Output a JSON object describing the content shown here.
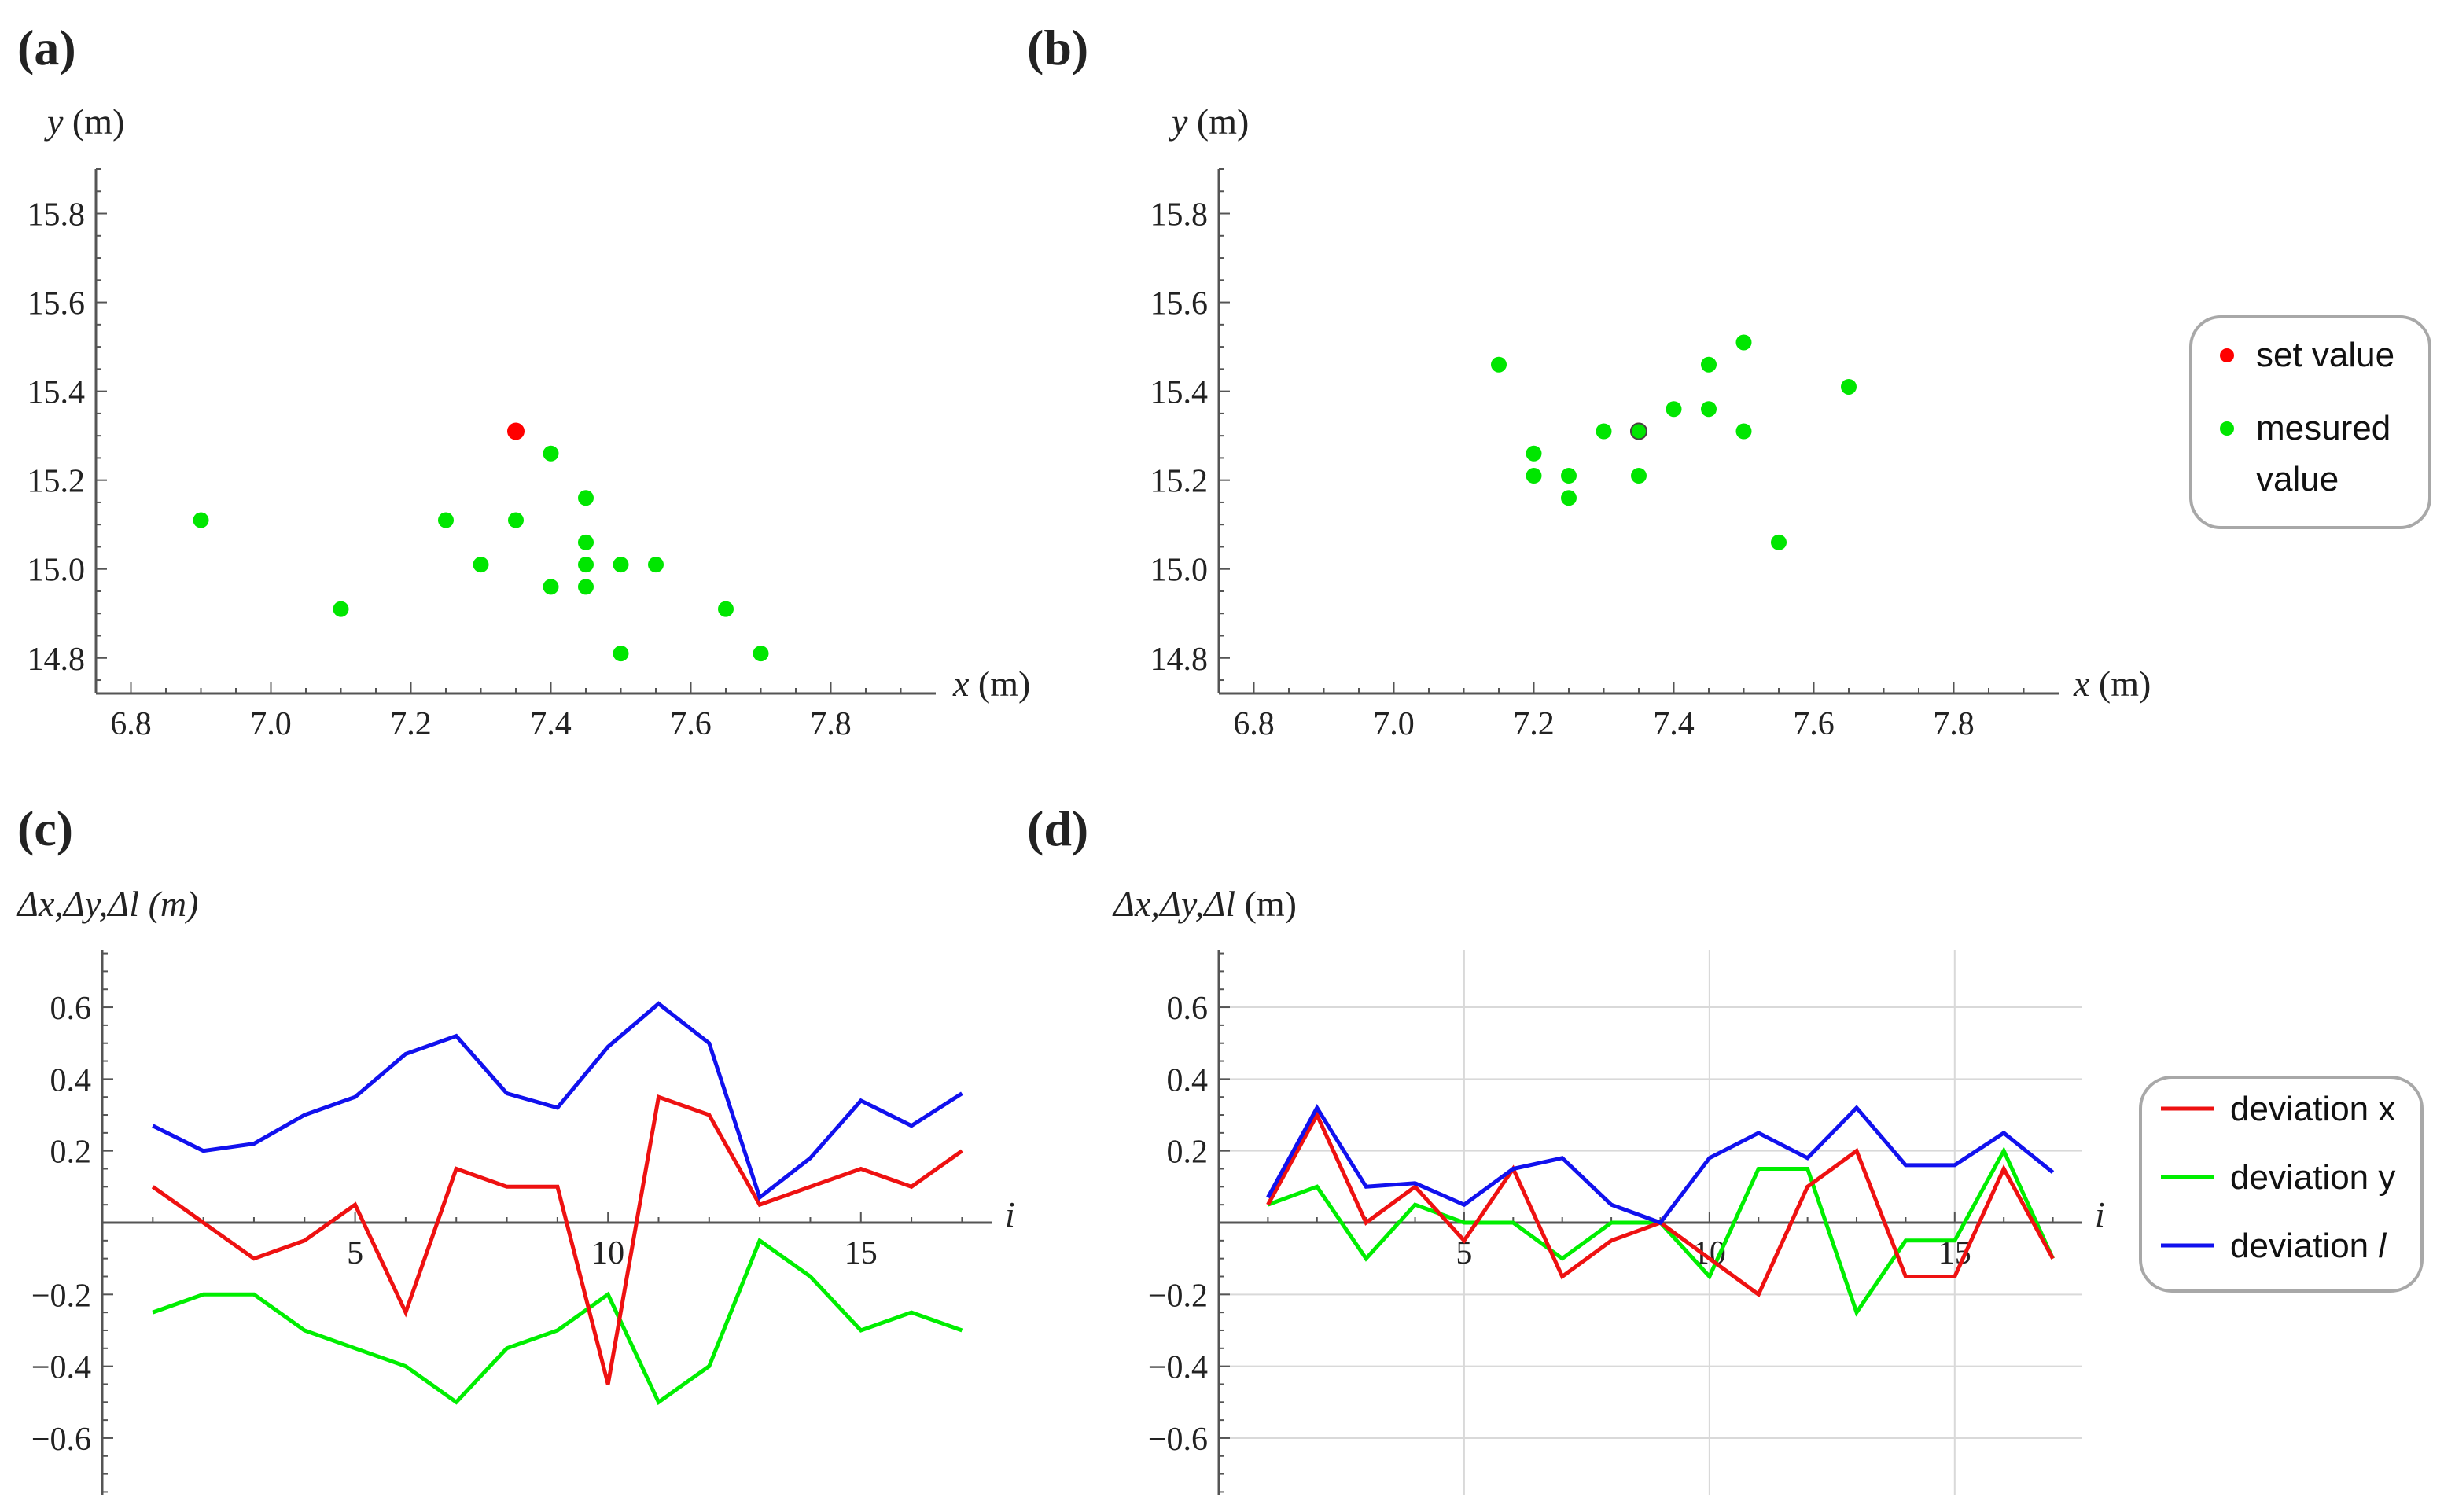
{
  "figure": {
    "panels": {
      "a": "(a)",
      "b": "(b)",
      "c": "(c)",
      "d": "(d)"
    }
  },
  "colors": {
    "set": "#ff0000",
    "measured": "#00e600",
    "dev_x": "#ee1111",
    "dev_y": "#00ee00",
    "dev_l": "#1111ee",
    "axis": "#555555",
    "grid": "#d9d9d9"
  },
  "legend_top": {
    "items": [
      {
        "label": "set value",
        "color": "#ff0000"
      },
      {
        "label": "mesured",
        "label2": "value",
        "color": "#00e600"
      }
    ]
  },
  "legend_bottom": {
    "items": [
      {
        "label": "deviation x",
        "color": "#ee1111"
      },
      {
        "label": "deviation y",
        "color": "#00ee00"
      },
      {
        "label": "deviation ",
        "italic": "l",
        "color": "#1111ee"
      }
    ]
  },
  "chart_data": [
    {
      "id": "a",
      "type": "scatter",
      "title": "",
      "xlabel_var": "x",
      "xlabel_unit": " (m)",
      "ylabel_var": "y",
      "ylabel_unit": " (m)",
      "xlim": [
        6.75,
        7.95
      ],
      "ylim": [
        14.72,
        15.9
      ],
      "xticks": [
        6.8,
        7.0,
        7.2,
        7.4,
        7.6,
        7.8
      ],
      "xtick_labels": [
        "6.8",
        "7.0",
        "7.2",
        "7.4",
        "7.6",
        "7.8"
      ],
      "yticks": [
        14.8,
        15.0,
        15.2,
        15.4,
        15.6,
        15.8
      ],
      "ytick_labels": [
        "14.8",
        "15.0",
        "15.2",
        "15.4",
        "15.6",
        "15.8"
      ],
      "set_value": {
        "x": 7.35,
        "y": 15.31
      },
      "measured": {
        "x": [
          6.9,
          7.1,
          7.25,
          7.3,
          7.35,
          7.4,
          7.4,
          7.45,
          7.45,
          7.45,
          7.45,
          7.5,
          7.5,
          7.55,
          7.65,
          7.7
        ],
        "y": [
          15.11,
          14.91,
          15.11,
          15.01,
          15.11,
          15.26,
          14.96,
          15.16,
          15.06,
          15.01,
          14.96,
          15.01,
          14.81,
          15.01,
          14.91,
          14.81
        ]
      }
    },
    {
      "id": "b",
      "type": "scatter",
      "title": "",
      "xlabel_var": "x",
      "xlabel_unit": " (m)",
      "ylabel_var": "y",
      "ylabel_unit": " (m)",
      "xlim": [
        6.75,
        7.95
      ],
      "ylim": [
        14.72,
        15.9
      ],
      "xticks": [
        6.8,
        7.0,
        7.2,
        7.4,
        7.6,
        7.8
      ],
      "xtick_labels": [
        "6.8",
        "7.0",
        "7.2",
        "7.4",
        "7.6",
        "7.8"
      ],
      "yticks": [
        14.8,
        15.0,
        15.2,
        15.4,
        15.6,
        15.8
      ],
      "ytick_labels": [
        "14.8",
        "15.0",
        "15.2",
        "15.4",
        "15.6",
        "15.8"
      ],
      "set_value": {
        "x": 7.35,
        "y": 15.31
      },
      "measured": {
        "x": [
          7.15,
          7.2,
          7.2,
          7.25,
          7.25,
          7.3,
          7.35,
          7.35,
          7.4,
          7.45,
          7.45,
          7.5,
          7.5,
          7.55,
          7.65
        ],
        "y": [
          15.46,
          15.26,
          15.21,
          15.21,
          15.16,
          15.31,
          15.31,
          15.21,
          15.36,
          15.46,
          15.36,
          15.51,
          15.31,
          15.06,
          15.41
        ]
      }
    },
    {
      "id": "c",
      "type": "line",
      "title": "",
      "xlabel_var": "i",
      "ylabel_var": "Δx,Δy,Δl",
      "ylabel_unit_italic": true,
      "ylabel_unit": " (m)",
      "xlim": [
        0,
        17.6
      ],
      "ylim": [
        -0.76,
        0.76
      ],
      "xticks": [
        5,
        10,
        15
      ],
      "xtick_labels": [
        "5",
        "10",
        "15"
      ],
      "yticks": [
        -0.6,
        -0.4,
        -0.2,
        0.2,
        0.4,
        0.6
      ],
      "ytick_labels": [
        "−0.6",
        "−0.4",
        "−0.2",
        "0.2",
        "0.4",
        "0.6"
      ],
      "x": [
        1,
        2,
        3,
        4,
        5,
        6,
        7,
        8,
        9,
        10,
        11,
        12,
        13,
        14,
        15,
        16,
        17
      ],
      "series": [
        {
          "name": "deviation x",
          "key": "dev_x",
          "values": [
            0.1,
            0.0,
            -0.1,
            -0.05,
            0.05,
            -0.25,
            0.15,
            0.1,
            0.1,
            -0.45,
            0.35,
            0.3,
            0.05,
            0.1,
            0.15,
            0.1,
            0.2
          ]
        },
        {
          "name": "deviation y",
          "key": "dev_y",
          "values": [
            -0.25,
            -0.2,
            -0.2,
            -0.3,
            -0.35,
            -0.4,
            -0.5,
            -0.35,
            -0.3,
            -0.2,
            -0.5,
            -0.4,
            -0.05,
            -0.15,
            -0.3,
            -0.25,
            -0.3
          ]
        },
        {
          "name": "deviation l",
          "key": "dev_l",
          "values": [
            0.27,
            0.2,
            0.22,
            0.3,
            0.35,
            0.47,
            0.52,
            0.36,
            0.32,
            0.49,
            0.61,
            0.5,
            0.07,
            0.18,
            0.34,
            0.27,
            0.36
          ]
        }
      ]
    },
    {
      "id": "d",
      "type": "line",
      "title": "",
      "xlabel_var": "i",
      "ylabel_var": "Δx,Δy,Δl",
      "ylabel_unit_italic": false,
      "ylabel_unit": " (m)",
      "xlim": [
        0,
        17.6
      ],
      "ylim": [
        -0.76,
        0.76
      ],
      "xticks": [
        5,
        10,
        15
      ],
      "xtick_labels": [
        "5",
        "10",
        "15"
      ],
      "yticks": [
        -0.6,
        -0.4,
        -0.2,
        0.2,
        0.4,
        0.6
      ],
      "ytick_labels": [
        "−0.6",
        "−0.4",
        "−0.2",
        "0.2",
        "0.4",
        "0.6"
      ],
      "grid": true,
      "x": [
        1,
        2,
        3,
        4,
        5,
        6,
        7,
        8,
        9,
        10,
        11,
        12,
        13,
        14,
        15,
        16,
        17
      ],
      "series": [
        {
          "name": "deviation x",
          "key": "dev_x",
          "values": [
            0.05,
            0.3,
            0.0,
            0.1,
            -0.05,
            0.15,
            -0.15,
            -0.05,
            0.0,
            -0.1,
            -0.2,
            0.1,
            0.2,
            -0.15,
            -0.15,
            0.15,
            -0.1
          ]
        },
        {
          "name": "deviation y",
          "key": "dev_y",
          "values": [
            0.05,
            0.1,
            -0.1,
            0.05,
            0.0,
            0.0,
            -0.1,
            0.0,
            0.0,
            -0.15,
            0.15,
            0.15,
            -0.25,
            -0.05,
            -0.05,
            0.2,
            -0.1
          ]
        },
        {
          "name": "deviation l",
          "key": "dev_l",
          "values": [
            0.07,
            0.32,
            0.1,
            0.11,
            0.05,
            0.15,
            0.18,
            0.05,
            0.0,
            0.18,
            0.25,
            0.18,
            0.32,
            0.16,
            0.16,
            0.25,
            0.14
          ]
        }
      ]
    }
  ]
}
